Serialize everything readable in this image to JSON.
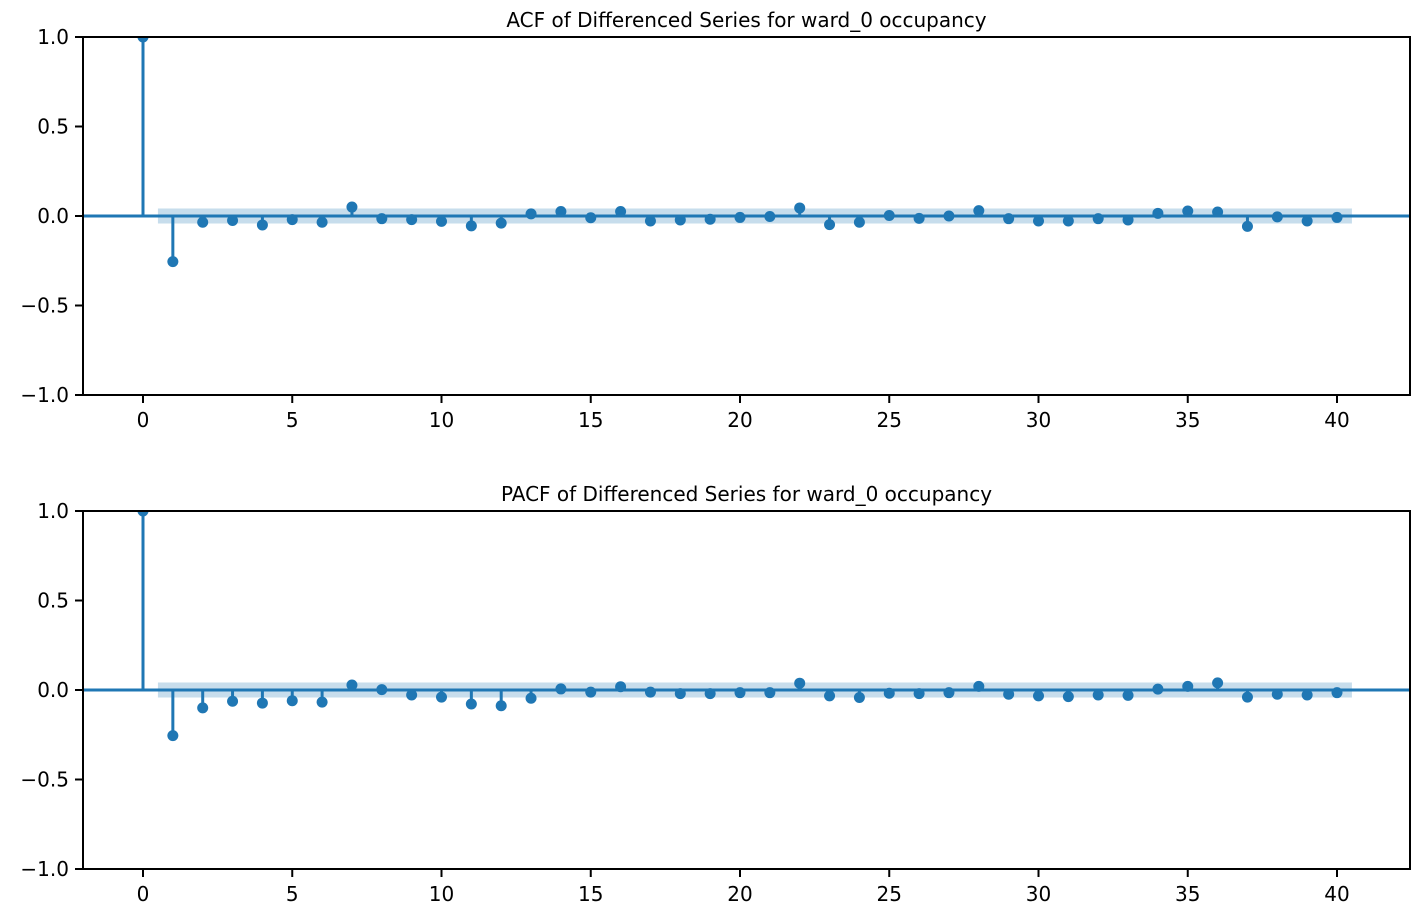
{
  "figure": {
    "background_color": "#ffffff",
    "text_color": "#000000"
  },
  "chart_data": [
    {
      "type": "stem",
      "name": "acf",
      "title": "ACF of Differenced Series for ward_0 occupancy",
      "xlabel": "",
      "ylabel": "",
      "grid": false,
      "legend": null,
      "xlim": [
        -2,
        42.4
      ],
      "ylim": [
        -1.0,
        1.0
      ],
      "xticks": [
        0,
        5,
        10,
        15,
        20,
        25,
        30,
        35,
        40
      ],
      "ytick_labels": [
        "1.0",
        "0.5",
        "0.0",
        "−0.5",
        "−1.0"
      ],
      "ytick_values": [
        1.0,
        0.5,
        0.0,
        -0.5,
        -1.0
      ],
      "confidence_interval_halfwidth": 0.042,
      "confidence_band_lag_range": [
        0.5,
        40.5
      ],
      "lags": [
        0,
        1,
        2,
        3,
        4,
        5,
        6,
        7,
        8,
        9,
        10,
        11,
        12,
        13,
        14,
        15,
        16,
        17,
        18,
        19,
        20,
        21,
        22,
        23,
        24,
        25,
        26,
        27,
        28,
        29,
        30,
        31,
        32,
        33,
        34,
        35,
        36,
        37,
        38,
        39,
        40
      ],
      "values": [
        1.0,
        -0.255,
        -0.035,
        -0.025,
        -0.05,
        -0.02,
        -0.035,
        0.05,
        -0.015,
        -0.02,
        -0.03,
        -0.055,
        -0.04,
        0.012,
        0.025,
        -0.01,
        0.025,
        -0.028,
        -0.022,
        -0.018,
        -0.008,
        -0.003,
        0.045,
        -0.048,
        -0.035,
        0.003,
        -0.013,
        0.0,
        0.03,
        -0.015,
        -0.028,
        -0.028,
        -0.015,
        -0.022,
        0.015,
        0.028,
        0.022,
        -0.058,
        -0.005,
        -0.028,
        -0.008
      ],
      "colors": {
        "stem": "#1f77b4",
        "marker": "#1f77b4",
        "zero_line": "#1f77b4",
        "confidence_band": "rgba(31,119,180,0.25)",
        "spine": "#000000"
      }
    },
    {
      "type": "stem",
      "name": "pacf",
      "title": "PACF of Differenced Series for ward_0 occupancy",
      "xlabel": "",
      "ylabel": "",
      "grid": false,
      "legend": null,
      "xlim": [
        -2,
        42.4
      ],
      "ylim": [
        -1.0,
        1.0
      ],
      "xticks": [
        0,
        5,
        10,
        15,
        20,
        25,
        30,
        35,
        40
      ],
      "ytick_labels": [
        "1.0",
        "0.5",
        "0.0",
        "−0.5",
        "−1.0"
      ],
      "ytick_values": [
        1.0,
        0.5,
        0.0,
        -0.5,
        -1.0
      ],
      "confidence_interval_halfwidth": 0.042,
      "confidence_band_lag_range": [
        0.5,
        40.5
      ],
      "lags": [
        0,
        1,
        2,
        3,
        4,
        5,
        6,
        7,
        8,
        9,
        10,
        11,
        12,
        13,
        14,
        15,
        16,
        17,
        18,
        19,
        20,
        21,
        22,
        23,
        24,
        25,
        26,
        27,
        28,
        29,
        30,
        31,
        32,
        33,
        34,
        35,
        36,
        37,
        38,
        39,
        40
      ],
      "values": [
        1.0,
        -0.255,
        -0.1,
        -0.063,
        -0.073,
        -0.06,
        -0.068,
        0.028,
        0.002,
        -0.028,
        -0.04,
        -0.078,
        -0.088,
        -0.046,
        0.006,
        -0.012,
        0.018,
        -0.012,
        -0.02,
        -0.02,
        -0.015,
        -0.015,
        0.038,
        -0.033,
        -0.042,
        -0.018,
        -0.02,
        -0.015,
        0.02,
        -0.024,
        -0.033,
        -0.037,
        -0.028,
        -0.03,
        0.005,
        0.02,
        0.04,
        -0.04,
        -0.024,
        -0.028,
        -0.015
      ],
      "colors": {
        "stem": "#1f77b4",
        "marker": "#1f77b4",
        "zero_line": "#1f77b4",
        "confidence_band": "rgba(31,119,180,0.25)",
        "spine": "#000000"
      }
    }
  ]
}
